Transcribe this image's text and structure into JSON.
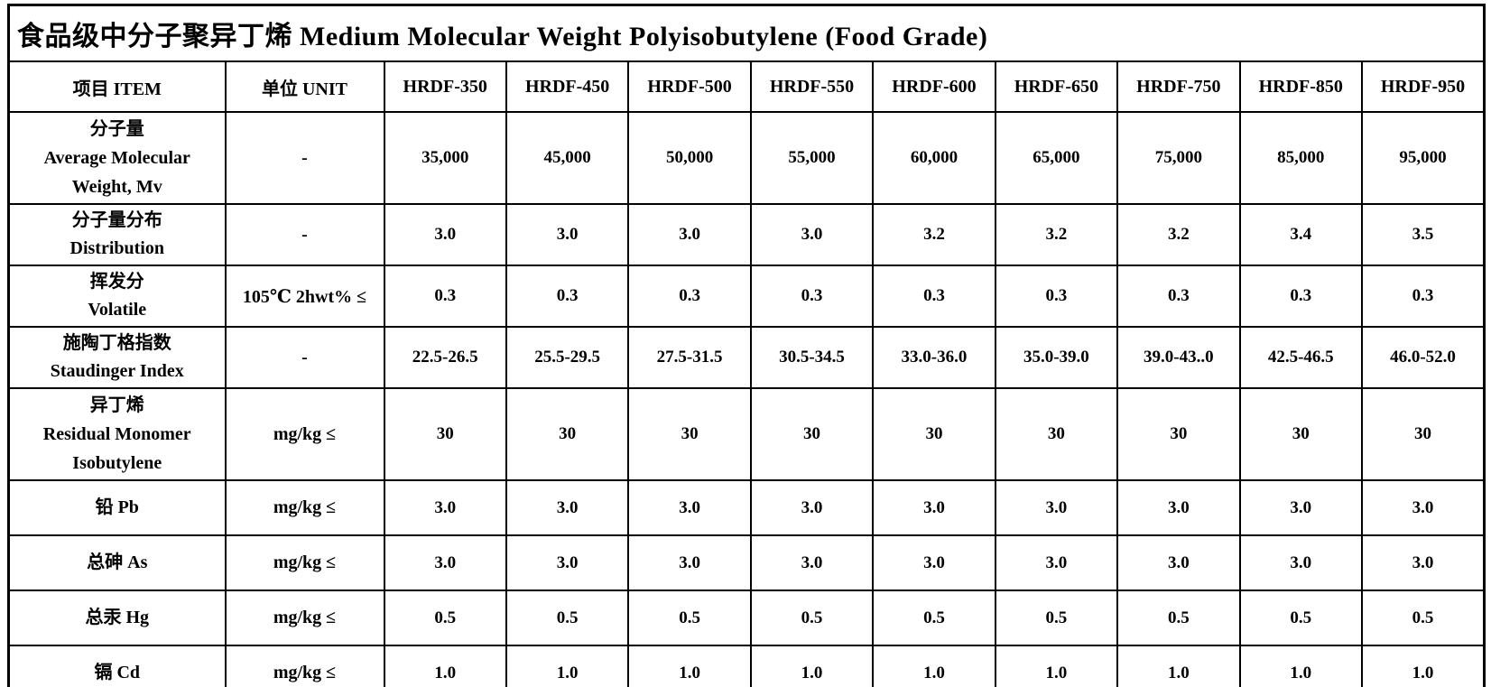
{
  "title": "食品级中分子聚异丁烯 Medium Molecular Weight Polyisobutylene (Food Grade)",
  "table": {
    "header": {
      "item_label": "项目 ITEM",
      "unit_label": "单位 UNIT",
      "grades": [
        "HRDF-350",
        "HRDF-450",
        "HRDF-500",
        "HRDF-550",
        "HRDF-600",
        "HRDF-650",
        "HRDF-750",
        "HRDF-850",
        "HRDF-950"
      ]
    },
    "rows": [
      {
        "item_lines": [
          "分子量",
          "Average Molecular",
          "Weight, Mv"
        ],
        "unit": "-",
        "values": [
          "35,000",
          "45,000",
          "50,000",
          "55,000",
          "60,000",
          "65,000",
          "75,000",
          "85,000",
          "95,000"
        ]
      },
      {
        "item_lines": [
          "分子量分布",
          "Distribution"
        ],
        "unit": "-",
        "values": [
          "3.0",
          "3.0",
          "3.0",
          "3.0",
          "3.2",
          "3.2",
          "3.2",
          "3.4",
          "3.5"
        ]
      },
      {
        "item_lines": [
          "挥发分",
          "Volatile"
        ],
        "unit": "105℃ 2hwt% ≤",
        "values": [
          "0.3",
          "0.3",
          "0.3",
          "0.3",
          "0.3",
          "0.3",
          "0.3",
          "0.3",
          "0.3"
        ]
      },
      {
        "item_lines": [
          "施陶丁格指数",
          "Staudinger Index"
        ],
        "unit": "-",
        "values": [
          "22.5-26.5",
          "25.5-29.5",
          "27.5-31.5",
          "30.5-34.5",
          "33.0-36.0",
          "35.0-39.0",
          "39.0-43..0",
          "42.5-46.5",
          "46.0-52.0"
        ]
      },
      {
        "item_lines": [
          "异丁烯",
          "Residual Monomer",
          "Isobutylene"
        ],
        "unit": "mg/kg ≤",
        "values": [
          "30",
          "30",
          "30",
          "30",
          "30",
          "30",
          "30",
          "30",
          "30"
        ]
      },
      {
        "item_lines": [
          "铅 Pb"
        ],
        "unit": "mg/kg ≤",
        "values": [
          "3.0",
          "3.0",
          "3.0",
          "3.0",
          "3.0",
          "3.0",
          "3.0",
          "3.0",
          "3.0"
        ]
      },
      {
        "item_lines": [
          "总砷 As"
        ],
        "unit": "mg/kg ≤",
        "values": [
          "3.0",
          "3.0",
          "3.0",
          "3.0",
          "3.0",
          "3.0",
          "3.0",
          "3.0",
          "3.0"
        ]
      },
      {
        "item_lines": [
          "总汞 Hg"
        ],
        "unit": "mg/kg ≤",
        "values": [
          "0.5",
          "0.5",
          "0.5",
          "0.5",
          "0.5",
          "0.5",
          "0.5",
          "0.5",
          "0.5"
        ]
      },
      {
        "item_lines": [
          "镉 Cd"
        ],
        "unit": "mg/kg ≤",
        "values": [
          "1.0",
          "1.0",
          "1.0",
          "1.0",
          "1.0",
          "1.0",
          "1.0",
          "1.0",
          "1.0"
        ]
      }
    ]
  }
}
